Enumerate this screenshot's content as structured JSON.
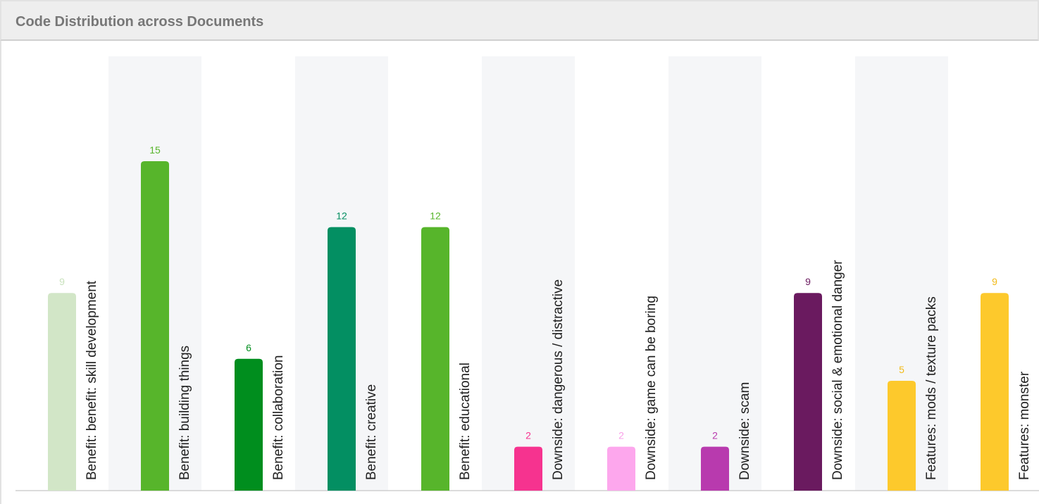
{
  "header": {
    "title": "Code Distribution across Documents"
  },
  "chart_data": {
    "type": "bar",
    "title": "Code Distribution across Documents",
    "xlabel": "",
    "ylabel": "",
    "ylim": [
      0,
      20
    ],
    "grid": false,
    "categories": [
      "Benefit: benefit: skill development",
      "Benefit: building things",
      "Benefit: collaboration",
      "Benefit: creative",
      "Benefit: educational",
      "Downside: dangerous / distractive",
      "Downside: game can be boring",
      "Downside: scam",
      "Downside: social & emotional danger",
      "Features: mods / texture packs",
      "Features: monster"
    ],
    "values": [
      9,
      15,
      6,
      12,
      12,
      2,
      2,
      2,
      9,
      5,
      9
    ],
    "colors": [
      "#d2e6c7",
      "#57b52b",
      "#008e1e",
      "#038f62",
      "#57b52b",
      "#f6338f",
      "#fda7ed",
      "#b83aae",
      "#6a1a5f",
      "#fdc92c",
      "#fdc92c"
    ],
    "value_colors": [
      "#c9e2bd",
      "#57b52b",
      "#008e1e",
      "#038f62",
      "#57b52b",
      "#f6338f",
      "#f9a0e8",
      "#b83aae",
      "#6a1a5f",
      "#f2ba18",
      "#f2ba18"
    ]
  }
}
